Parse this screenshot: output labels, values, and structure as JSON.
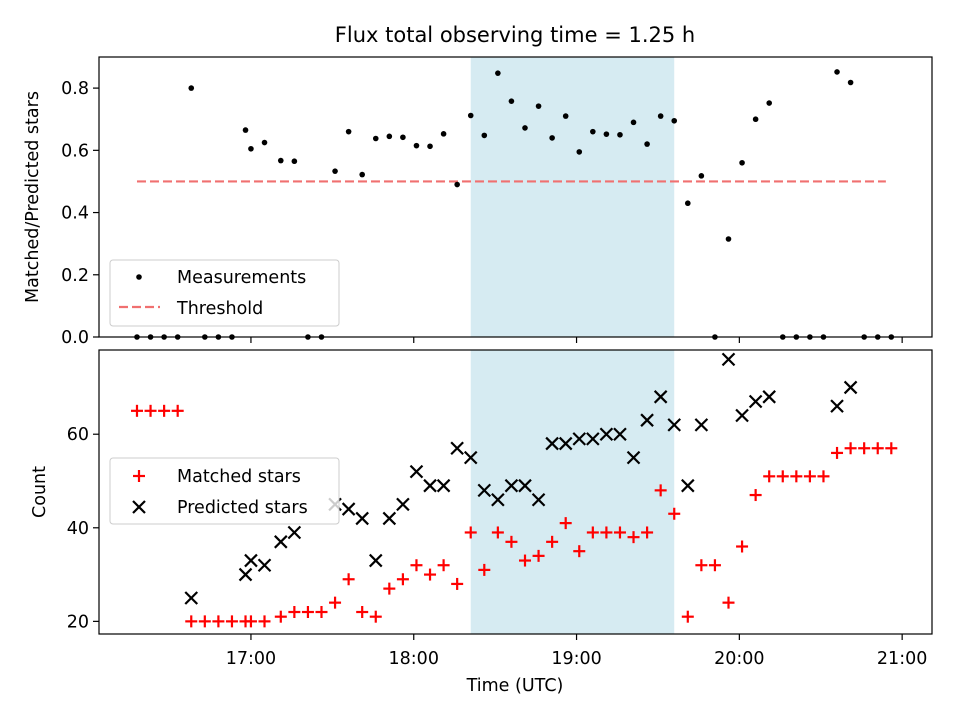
{
  "chart_data": [
    {
      "type": "scatter",
      "title": "Flux total observing time = 1.25 h",
      "xlabel": "",
      "ylabel": "Matched/Predicted stars",
      "xlim": [
        "16:04",
        "21:11"
      ],
      "ylim": [
        0,
        0.9
      ],
      "yticks": [
        0.0,
        0.2,
        0.4,
        0.6,
        0.8
      ],
      "ytick_labels": [
        "0.0",
        "0.2",
        "0.4",
        "0.6",
        "0.8"
      ],
      "grid": false,
      "legend": "lower-left",
      "shaded_region": {
        "start": "18:21",
        "end": "19:36",
        "color": "#add8e6"
      },
      "threshold_line": {
        "name": "Threshold",
        "y": 0.5,
        "x_start": "16:18",
        "x_end": "20:54",
        "color": "#f07070",
        "style": "dashed"
      },
      "series": [
        {
          "name": "Measurements",
          "marker": "dot",
          "color": "#000000",
          "points": [
            [
              "16:18",
              0.0
            ],
            [
              "16:23",
              0.0
            ],
            [
              "16:28",
              0.0
            ],
            [
              "16:33",
              0.0
            ],
            [
              "16:38",
              0.8
            ],
            [
              "16:43",
              0.0
            ],
            [
              "16:48",
              0.0
            ],
            [
              "16:53",
              0.0
            ],
            [
              "16:58",
              0.665
            ],
            [
              "17:00",
              0.605
            ],
            [
              "17:05",
              0.625
            ],
            [
              "17:11",
              0.567
            ],
            [
              "17:16",
              0.565
            ],
            [
              "17:21",
              0.0
            ],
            [
              "17:26",
              0.0
            ],
            [
              "17:31",
              0.533
            ],
            [
              "17:36",
              0.66
            ],
            [
              "17:41",
              0.522
            ],
            [
              "17:46",
              0.638
            ],
            [
              "17:51",
              0.645
            ],
            [
              "17:56",
              0.642
            ],
            [
              "18:01",
              0.615
            ],
            [
              "18:06",
              0.613
            ],
            [
              "18:11",
              0.653
            ],
            [
              "18:16",
              0.49
            ],
            [
              "18:21",
              0.712
            ],
            [
              "18:26",
              0.648
            ],
            [
              "18:31",
              0.848
            ],
            [
              "18:36",
              0.758
            ],
            [
              "18:41",
              0.672
            ],
            [
              "18:46",
              0.742
            ],
            [
              "18:51",
              0.64
            ],
            [
              "18:56",
              0.71
            ],
            [
              "19:01",
              0.595
            ],
            [
              "19:06",
              0.66
            ],
            [
              "19:11",
              0.652
            ],
            [
              "19:16",
              0.65
            ],
            [
              "19:21",
              0.69
            ],
            [
              "19:26",
              0.62
            ],
            [
              "19:31",
              0.71
            ],
            [
              "19:36",
              0.695
            ],
            [
              "19:41",
              0.43
            ],
            [
              "19:46",
              0.518
            ],
            [
              "19:51",
              0.0
            ],
            [
              "19:56",
              0.315
            ],
            [
              "20:01",
              0.56
            ],
            [
              "20:06",
              0.7
            ],
            [
              "20:11",
              0.752
            ],
            [
              "20:16",
              0.0
            ],
            [
              "20:21",
              0.0
            ],
            [
              "20:26",
              0.0
            ],
            [
              "20:31",
              0.0
            ],
            [
              "20:36",
              0.852
            ],
            [
              "20:41",
              0.818
            ],
            [
              "20:46",
              0.0
            ],
            [
              "20:51",
              0.0
            ],
            [
              "20:56",
              0.0
            ]
          ]
        }
      ]
    },
    {
      "type": "scatter",
      "title": "",
      "xlabel": "Time (UTC)",
      "ylabel": "Count",
      "xlim": [
        "16:04",
        "21:11"
      ],
      "ylim": [
        17.3,
        78
      ],
      "yticks": [
        20,
        40,
        60
      ],
      "ytick_labels": [
        "20",
        "40",
        "60"
      ],
      "xticks": [
        "17:00",
        "18:00",
        "19:00",
        "20:00",
        "21:00"
      ],
      "xtick_labels": [
        "17:00",
        "18:00",
        "19:00",
        "20:00",
        "21:00"
      ],
      "grid": false,
      "legend": "center-left",
      "shaded_region": {
        "start": "18:21",
        "end": "19:36",
        "color": "#add8e6"
      },
      "series": [
        {
          "name": "Matched stars",
          "marker": "plus",
          "color": "#ff0000",
          "points": [
            [
              "16:18",
              65
            ],
            [
              "16:23",
              65
            ],
            [
              "16:28",
              65
            ],
            [
              "16:33",
              65
            ],
            [
              "16:38",
              20
            ],
            [
              "16:43",
              20
            ],
            [
              "16:48",
              20
            ],
            [
              "16:53",
              20
            ],
            [
              "16:58",
              20
            ],
            [
              "17:00",
              20
            ],
            [
              "17:05",
              20
            ],
            [
              "17:11",
              21
            ],
            [
              "17:16",
              22
            ],
            [
              "17:21",
              22
            ],
            [
              "17:26",
              22
            ],
            [
              "17:31",
              24
            ],
            [
              "17:36",
              29
            ],
            [
              "17:41",
              22
            ],
            [
              "17:46",
              21
            ],
            [
              "17:51",
              27
            ],
            [
              "17:56",
              29
            ],
            [
              "18:01",
              32
            ],
            [
              "18:06",
              30
            ],
            [
              "18:11",
              32
            ],
            [
              "18:16",
              28
            ],
            [
              "18:21",
              39
            ],
            [
              "18:26",
              31
            ],
            [
              "18:31",
              39
            ],
            [
              "18:36",
              37
            ],
            [
              "18:41",
              33
            ],
            [
              "18:46",
              34
            ],
            [
              "18:51",
              37
            ],
            [
              "18:56",
              41
            ],
            [
              "19:01",
              35
            ],
            [
              "19:06",
              39
            ],
            [
              "19:11",
              39
            ],
            [
              "19:16",
              39
            ],
            [
              "19:21",
              38
            ],
            [
              "19:26",
              39
            ],
            [
              "19:31",
              48
            ],
            [
              "19:36",
              43
            ],
            [
              "19:41",
              21
            ],
            [
              "19:46",
              32
            ],
            [
              "19:51",
              32
            ],
            [
              "19:56",
              24
            ],
            [
              "20:01",
              36
            ],
            [
              "20:06",
              47
            ],
            [
              "20:11",
              51
            ],
            [
              "20:16",
              51
            ],
            [
              "20:21",
              51
            ],
            [
              "20:26",
              51
            ],
            [
              "20:31",
              51
            ],
            [
              "20:36",
              56
            ],
            [
              "20:41",
              57
            ],
            [
              "20:46",
              57
            ],
            [
              "20:51",
              57
            ],
            [
              "20:56",
              57
            ]
          ]
        },
        {
          "name": "Predicted stars",
          "marker": "x",
          "color": "#000000",
          "points": [
            [
              "16:38",
              25
            ],
            [
              "16:58",
              30
            ],
            [
              "17:00",
              33
            ],
            [
              "17:05",
              32
            ],
            [
              "17:11",
              37
            ],
            [
              "17:16",
              39
            ],
            [
              "17:31",
              45
            ],
            [
              "17:36",
              44
            ],
            [
              "17:41",
              42
            ],
            [
              "17:46",
              33
            ],
            [
              "17:51",
              42
            ],
            [
              "17:56",
              45
            ],
            [
              "18:01",
              52
            ],
            [
              "18:06",
              49
            ],
            [
              "18:11",
              49
            ],
            [
              "18:16",
              57
            ],
            [
              "18:21",
              55
            ],
            [
              "18:26",
              48
            ],
            [
              "18:31",
              46
            ],
            [
              "18:36",
              49
            ],
            [
              "18:41",
              49
            ],
            [
              "18:46",
              46
            ],
            [
              "18:51",
              58
            ],
            [
              "18:56",
              58
            ],
            [
              "19:01",
              59
            ],
            [
              "19:06",
              59
            ],
            [
              "19:11",
              60
            ],
            [
              "19:16",
              60
            ],
            [
              "19:21",
              55
            ],
            [
              "19:26",
              63
            ],
            [
              "19:31",
              68
            ],
            [
              "19:36",
              62
            ],
            [
              "19:41",
              49
            ],
            [
              "19:46",
              62
            ],
            [
              "19:56",
              76
            ],
            [
              "20:01",
              64
            ],
            [
              "20:06",
              67
            ],
            [
              "20:11",
              68
            ],
            [
              "20:36",
              66
            ],
            [
              "20:41",
              70
            ]
          ]
        }
      ]
    }
  ]
}
